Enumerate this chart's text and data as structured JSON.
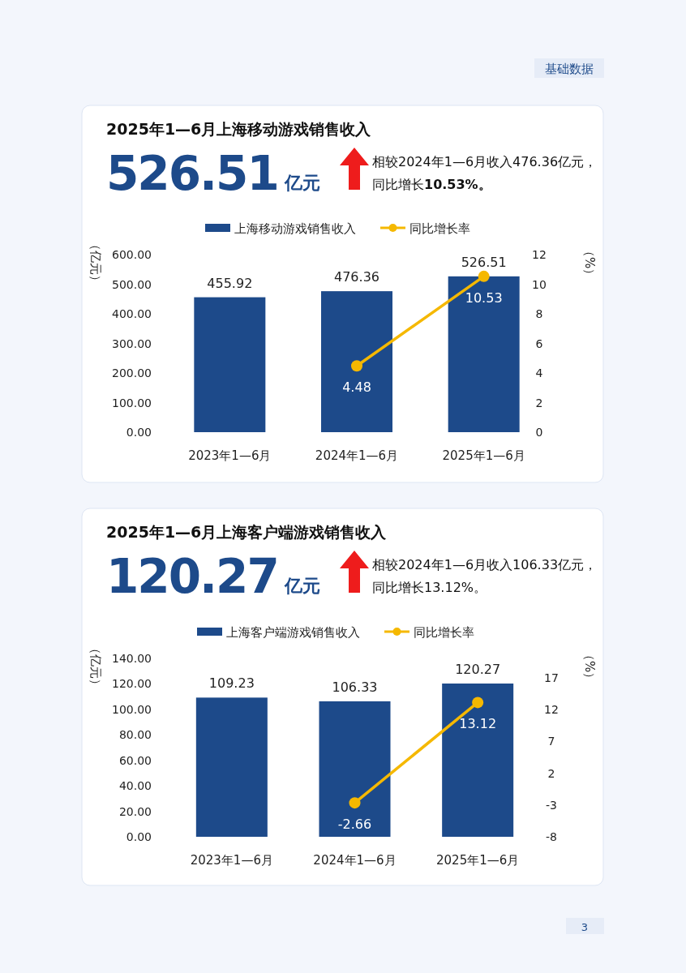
{
  "chart_data": [
    {
      "type": "bar",
      "title": "2025年1—6月上海移动游戏销售收入",
      "categories": [
        "2023年1—6月",
        "2024年1—6月",
        "2025年1—6月"
      ],
      "series": [
        {
          "name": "上海移动游戏销售收入",
          "type": "bar",
          "color": "#1d4a8a",
          "values": [
            455.92,
            476.36,
            526.51
          ]
        },
        {
          "name": "同比增长率",
          "type": "line",
          "axis": "y2",
          "color": "#f5b800",
          "values": [
            null,
            4.48,
            10.53
          ]
        }
      ],
      "ylabel": "（亿元）",
      "y2label": "（%）",
      "ylim": [
        0,
        600
      ],
      "yticks": [
        {
          "value": 0,
          "label": "0.00"
        },
        {
          "value": 100,
          "label": "100.00"
        },
        {
          "value": 200,
          "label": "200.00"
        },
        {
          "value": 300,
          "label": "300.00"
        },
        {
          "value": 400,
          "label": "400.00"
        },
        {
          "value": 500,
          "label": "500.00"
        },
        {
          "value": 600,
          "label": "600.00"
        }
      ],
      "y2lim": [
        0,
        12
      ],
      "y2ticks": [
        0,
        2,
        4,
        6,
        8,
        10,
        12
      ],
      "legend": "top",
      "marker": "circle",
      "data_labels": true,
      "annotations": [
        "526.51",
        "亿元",
        "相较2024年1—6月收入476.36亿元，",
        "同比增长**10.53%。**",
        "基础数据"
      ]
    },
    {
      "type": "bar",
      "title": "2025年1—6月上海客户端游戏销售收入",
      "categories": [
        "2023年1—6月",
        "2024年1—6月",
        "2025年1—6月"
      ],
      "series": [
        {
          "name": "上海客户端游戏销售收入",
          "type": "bar",
          "color": "#1d4a8a",
          "values": [
            109.23,
            106.33,
            120.27
          ]
        },
        {
          "name": "同比增长率",
          "type": "line",
          "axis": "y2",
          "color": "#f5b800",
          "values": [
            null,
            -2.66,
            13.12
          ]
        }
      ],
      "ylabel": "（亿元）",
      "y2label": "（%）",
      "ylim": [
        0,
        140
      ],
      "yticks": [
        {
          "value": 0,
          "label": "0.00"
        },
        {
          "value": 20,
          "label": "20.00"
        },
        {
          "value": 40,
          "label": "40.00"
        },
        {
          "value": 60,
          "label": "60.00"
        },
        {
          "value": 80,
          "label": "80.00"
        },
        {
          "value": 100,
          "label": "100.00"
        },
        {
          "value": 120,
          "label": "120.00"
        },
        {
          "value": 140,
          "label": "140.00"
        }
      ],
      "y2lim": [
        -8,
        17
      ],
      "y2ticks": [
        -8,
        -3,
        2,
        7,
        12,
        17
      ],
      "legend": "top",
      "marker": "circle",
      "data_labels": true,
      "annotations": [
        "120.27",
        "亿元",
        "相较2024年1—6月收入106.33亿元，",
        "同比增长13.12%。",
        "3"
      ]
    }
  ]
}
